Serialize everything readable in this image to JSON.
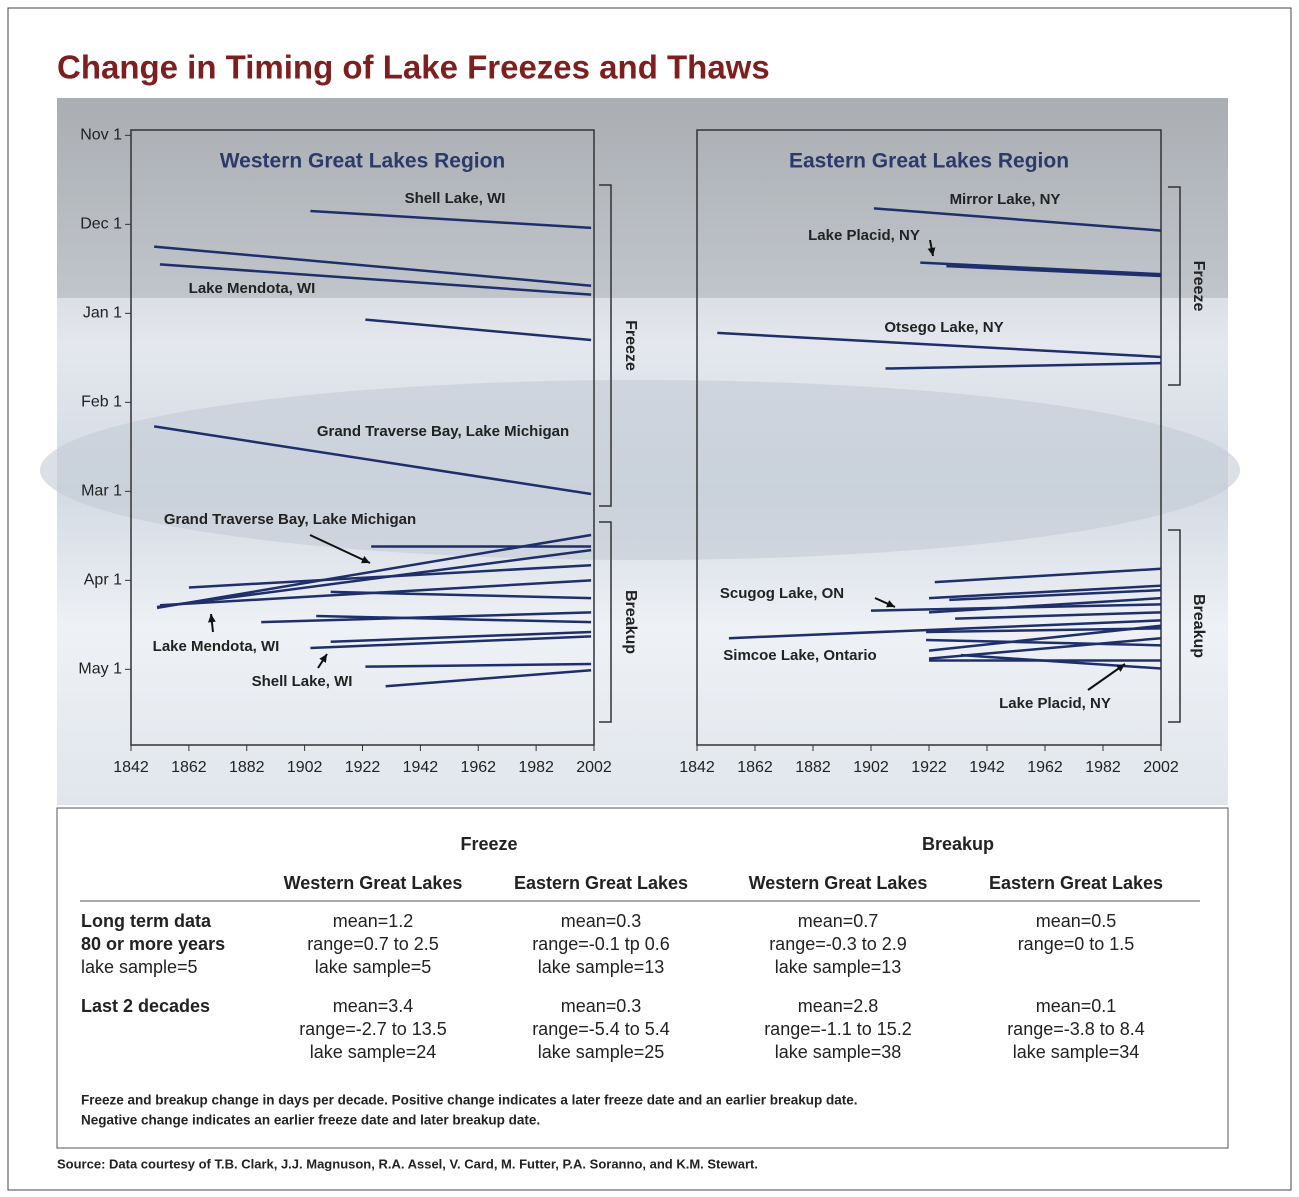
{
  "title": "Change in Timing of Lake Freezes and Thaws",
  "chart_data": [
    {
      "type": "segments",
      "title": "Western Great Lakes Region",
      "color": "#1f2f6b",
      "xlim": [
        1842,
        2002
      ],
      "xticks": [
        1842,
        1862,
        1882,
        1902,
        1922,
        1942,
        1962,
        1982,
        2002
      ],
      "ylim": [
        -0.06,
        6.85
      ],
      "y_reversed": true,
      "yticks": [
        {
          "value": 0,
          "label": "Nov 1"
        },
        {
          "value": 1,
          "label": "Dec 1"
        },
        {
          "value": 2,
          "label": "Jan 1"
        },
        {
          "value": 3,
          "label": "Feb 1"
        },
        {
          "value": 4,
          "label": "Mar 1"
        },
        {
          "value": 5,
          "label": "Apr 1"
        },
        {
          "value": 6,
          "label": "May 1"
        }
      ],
      "segments": [
        {
          "x": [
            1904,
            2001
          ],
          "values": [
            0.85,
            1.04
          ]
        },
        {
          "x": [
            1850,
            2001
          ],
          "values": [
            1.25,
            1.69
          ]
        },
        {
          "x": [
            1852,
            2001
          ],
          "values": [
            1.45,
            1.79
          ]
        },
        {
          "x": [
            1923,
            2001
          ],
          "values": [
            2.07,
            2.3
          ]
        },
        {
          "x": [
            1850,
            2001
          ],
          "values": [
            3.27,
            4.03
          ]
        },
        {
          "x": [
            1925,
            2001
          ],
          "values": [
            4.62,
            4.62
          ]
        },
        {
          "x": [
            1851,
            2001
          ],
          "values": [
            5.31,
            4.49
          ]
        },
        {
          "x": [
            1851,
            2001
          ],
          "values": [
            5.3,
            4.66
          ]
        },
        {
          "x": [
            1862,
            2001
          ],
          "values": [
            5.08,
            4.83
          ]
        },
        {
          "x": [
            1852,
            2001
          ],
          "values": [
            5.28,
            5.0
          ]
        },
        {
          "x": [
            1911,
            2001
          ],
          "values": [
            5.13,
            5.2
          ]
        },
        {
          "x": [
            1887,
            2001
          ],
          "values": [
            5.47,
            5.36
          ]
        },
        {
          "x": [
            1906,
            2001
          ],
          "values": [
            5.4,
            5.47
          ]
        },
        {
          "x": [
            1911,
            2001
          ],
          "values": [
            5.69,
            5.58
          ]
        },
        {
          "x": [
            1904,
            2001
          ],
          "values": [
            5.76,
            5.63
          ]
        },
        {
          "x": [
            1923,
            2001
          ],
          "values": [
            5.97,
            5.94
          ]
        },
        {
          "x": [
            1930,
            2001
          ],
          "values": [
            6.19,
            6.01
          ]
        }
      ],
      "annotations": [
        "Shell Lake, WI",
        "Lake Mendota, WI",
        "Grand Traverse Bay, Lake Michigan",
        "Grand Traverse Bay, Lake Michigan",
        "Lake Mendota, WI",
        "Shell Lake, WI"
      ],
      "bracket_labels": [
        "Freeze",
        "Breakup"
      ]
    },
    {
      "type": "segments",
      "title": "Eastern Great Lakes Region",
      "color": "#1f2f6b",
      "xlim": [
        1842,
        2002
      ],
      "xticks": [
        1842,
        1862,
        1882,
        1902,
        1922,
        1942,
        1962,
        1982,
        2002
      ],
      "ylim": [
        -0.06,
        6.85
      ],
      "y_reversed": true,
      "segments": [
        {
          "x": [
            1903,
            2002
          ],
          "values": [
            0.82,
            1.07
          ]
        },
        {
          "x": [
            1919,
            2002
          ],
          "values": [
            1.43,
            1.56
          ]
        },
        {
          "x": [
            1928,
            2002
          ],
          "values": [
            1.47,
            1.58
          ]
        },
        {
          "x": [
            1849,
            2002
          ],
          "values": [
            2.22,
            2.49
          ]
        },
        {
          "x": [
            1907,
            2002
          ],
          "values": [
            2.62,
            2.56
          ]
        },
        {
          "x": [
            1924,
            2002
          ],
          "values": [
            5.02,
            4.87
          ]
        },
        {
          "x": [
            1922,
            2002
          ],
          "values": [
            5.2,
            5.06
          ]
        },
        {
          "x": [
            1929,
            2002
          ],
          "values": [
            5.22,
            5.11
          ]
        },
        {
          "x": [
            1922,
            2002
          ],
          "values": [
            5.36,
            5.2
          ]
        },
        {
          "x": [
            1902,
            2002
          ],
          "values": [
            5.34,
            5.27
          ]
        },
        {
          "x": [
            1931,
            2002
          ],
          "values": [
            5.43,
            5.36
          ]
        },
        {
          "x": [
            1853,
            2002
          ],
          "values": [
            5.65,
            5.45
          ]
        },
        {
          "x": [
            1921,
            2002
          ],
          "values": [
            5.58,
            5.54
          ]
        },
        {
          "x": [
            1922,
            2002
          ],
          "values": [
            5.79,
            5.51
          ]
        },
        {
          "x": [
            1922,
            2002
          ],
          "values": [
            5.88,
            5.65
          ]
        },
        {
          "x": [
            1922,
            2002
          ],
          "values": [
            5.9,
            5.9
          ]
        },
        {
          "x": [
            1933,
            2002
          ],
          "values": [
            5.84,
            5.99
          ]
        },
        {
          "x": [
            1921,
            2002
          ],
          "values": [
            5.67,
            5.73
          ]
        }
      ],
      "annotations": [
        "Mirror Lake, NY",
        "Lake Placid, NY",
        "Otsego Lake, NY",
        "Scugog Lake, ON",
        "Simcoe Lake, Ontario",
        "Lake Placid, NY"
      ],
      "bracket_labels": [
        "Freeze",
        "Breakup"
      ]
    }
  ],
  "table": {
    "groups": [
      "Freeze",
      "Breakup"
    ],
    "columns": [
      "Western Great Lakes",
      "Eastern Great Lakes",
      "Western Great Lakes",
      "Eastern Great Lakes"
    ],
    "rows": [
      {
        "label": [
          "Long term data",
          "80 or more years",
          "lake sample=5"
        ],
        "cells": [
          [
            "mean=1.2",
            "range=0.7 to 2.5",
            "lake sample=5"
          ],
          [
            "mean=0.3",
            "range=-0.1 tp 0.6",
            "lake sample=13"
          ],
          [
            "mean=0.7",
            "range=-0.3 to 2.9",
            "lake sample=13"
          ],
          [
            "mean=0.5",
            "range=0 to 1.5"
          ]
        ]
      },
      {
        "label": [
          "Last 2 decades"
        ],
        "cells": [
          [
            "mean=3.4",
            "range=-2.7 to 13.5",
            "lake sample=24"
          ],
          [
            "mean=0.3",
            "range=-5.4 to 5.4",
            "lake sample=25"
          ],
          [
            "mean=2.8",
            "range=-1.1 to 15.2",
            "lake sample=38"
          ],
          [
            "mean=0.1",
            "range=-3.8 to 8.4",
            "lake sample=34"
          ]
        ]
      }
    ]
  },
  "note": [
    "Freeze and breakup change in days per decade. Positive change indicates a later freeze date and an earlier breakup date.",
    "Negative change indicates an earlier freeze date and later breakup date."
  ],
  "source": "Source: Data courtesy of T.B. Clark, J.J. Magnuson, R.A. Assel, V. Card, M. Futter, P.A. Soranno, and K.M. Stewart."
}
